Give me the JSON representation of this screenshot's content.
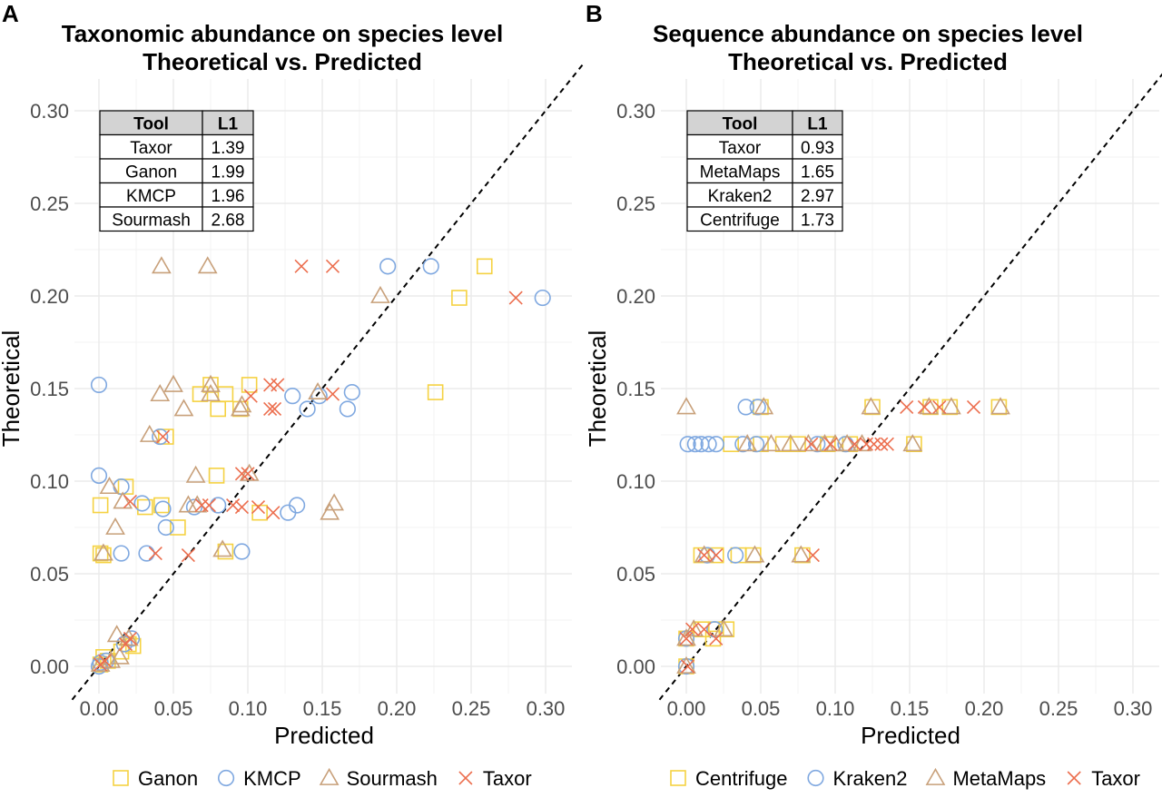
{
  "colors": {
    "Ganon": "#f5d242",
    "KMCP": "#7fa8e0",
    "Sourmash": "#c8a07a",
    "Taxor": "#ec6e4e",
    "Centrifuge": "#f5d242",
    "Kraken2": "#7fa8e0",
    "MetaMaps": "#c8a07a"
  },
  "chart_data": [
    {
      "panel": "A",
      "type": "scatter",
      "title": [
        "Taxonomic abundance on species level",
        "Theoretical vs. Predicted"
      ],
      "xlabel": "Predicted",
      "ylabel": "Theoretical",
      "xlim": [
        -0.015,
        0.315
      ],
      "ylim": [
        -0.013,
        0.315
      ],
      "xticks": [
        0,
        0.05,
        0.1,
        0.15,
        0.2,
        0.25,
        0.3
      ],
      "yticks": [
        0,
        0.05,
        0.1,
        0.15,
        0.2,
        0.25,
        0.3
      ],
      "tick_labels": [
        "0.00",
        "0.05",
        "0.10",
        "0.15",
        "0.20",
        "0.25",
        "0.30"
      ],
      "reference_line": "y = x (dashed)",
      "legend": [
        "Ganon",
        "KMCP",
        "Sourmash",
        "Taxor"
      ],
      "table": {
        "header": [
          "Tool",
          "L1"
        ],
        "rows": [
          [
            "Taxor",
            "1.39"
          ],
          [
            "Ganon",
            "1.99"
          ],
          [
            "KMCP",
            "1.96"
          ],
          [
            "Sourmash",
            "2.68"
          ]
        ]
      },
      "series": [
        {
          "name": "Ganon",
          "marker": "square",
          "points": [
            [
              0.259,
              0.216
            ],
            [
              0.242,
              0.199
            ],
            [
              0.226,
              0.148
            ],
            [
              0.101,
              0.152
            ],
            [
              0.075,
              0.152
            ],
            [
              0.068,
              0.147
            ],
            [
              0.085,
              0.147
            ],
            [
              0.08,
              0.139
            ],
            [
              0.095,
              0.139
            ],
            [
              0.045,
              0.124
            ],
            [
              0.079,
              0.103
            ],
            [
              0.001,
              0.087
            ],
            [
              0.018,
              0.097
            ],
            [
              0.031,
              0.086
            ],
            [
              0.042,
              0.087
            ],
            [
              0.053,
              0.075
            ],
            [
              0.108,
              0.083
            ],
            [
              0.001,
              0.061
            ],
            [
              0.003,
              0.06
            ],
            [
              0.085,
              0.062
            ],
            [
              0.02,
              0.012
            ],
            [
              0.023,
              0.011
            ],
            [
              0.015,
              0.008
            ],
            [
              0.003,
              0.005
            ],
            [
              0.006,
              0.003
            ],
            [
              0.001,
              0.001
            ]
          ]
        },
        {
          "name": "KMCP",
          "marker": "circle",
          "points": [
            [
              0.194,
              0.216
            ],
            [
              0.223,
              0.216
            ],
            [
              0.298,
              0.199
            ],
            [
              0.0,
              0.152
            ],
            [
              0.13,
              0.146
            ],
            [
              0.17,
              0.148
            ],
            [
              0.14,
              0.139
            ],
            [
              0.167,
              0.139
            ],
            [
              0.148,
              0.146
            ],
            [
              0.041,
              0.124
            ],
            [
              0.0,
              0.103
            ],
            [
              0.015,
              0.097
            ],
            [
              0.029,
              0.088
            ],
            [
              0.043,
              0.085
            ],
            [
              0.064,
              0.086
            ],
            [
              0.08,
              0.087
            ],
            [
              0.133,
              0.087
            ],
            [
              0.127,
              0.083
            ],
            [
              0.045,
              0.075
            ],
            [
              0.015,
              0.061
            ],
            [
              0.032,
              0.061
            ],
            [
              0.096,
              0.062
            ],
            [
              0.022,
              0.015
            ],
            [
              0.017,
              0.012
            ],
            [
              0.005,
              0.003
            ],
            [
              0.001,
              0.002
            ],
            [
              0.0,
              0.0
            ]
          ]
        },
        {
          "name": "Sourmash",
          "marker": "triangle",
          "points": [
            [
              0.042,
              0.216
            ],
            [
              0.073,
              0.216
            ],
            [
              0.189,
              0.2
            ],
            [
              0.041,
              0.147
            ],
            [
              0.05,
              0.152
            ],
            [
              0.057,
              0.139
            ],
            [
              0.075,
              0.152
            ],
            [
              0.075,
              0.147
            ],
            [
              0.095,
              0.139
            ],
            [
              0.096,
              0.141
            ],
            [
              0.147,
              0.148
            ],
            [
              0.034,
              0.125
            ],
            [
              0.065,
              0.103
            ],
            [
              0.101,
              0.104
            ],
            [
              0.007,
              0.097
            ],
            [
              0.011,
              0.075
            ],
            [
              0.016,
              0.089
            ],
            [
              0.06,
              0.087
            ],
            [
              0.066,
              0.087
            ],
            [
              0.158,
              0.088
            ],
            [
              0.155,
              0.083
            ],
            [
              0.003,
              0.061
            ],
            [
              0.083,
              0.063
            ],
            [
              0.012,
              0.017
            ],
            [
              0.02,
              0.015
            ],
            [
              0.008,
              0.003
            ],
            [
              0.014,
              0.005
            ],
            [
              0.001,
              0.001
            ]
          ]
        },
        {
          "name": "Taxor",
          "marker": "cross",
          "points": [
            [
              0.136,
              0.216
            ],
            [
              0.157,
              0.216
            ],
            [
              0.28,
              0.199
            ],
            [
              0.102,
              0.146
            ],
            [
              0.115,
              0.152
            ],
            [
              0.12,
              0.152
            ],
            [
              0.115,
              0.139
            ],
            [
              0.118,
              0.139
            ],
            [
              0.157,
              0.147
            ],
            [
              0.043,
              0.124
            ],
            [
              0.096,
              0.104
            ],
            [
              0.1,
              0.104
            ],
            [
              0.021,
              0.089
            ],
            [
              0.069,
              0.087
            ],
            [
              0.074,
              0.087
            ],
            [
              0.09,
              0.087
            ],
            [
              0.096,
              0.086
            ],
            [
              0.107,
              0.086
            ],
            [
              0.117,
              0.083
            ],
            [
              0.038,
              0.061
            ],
            [
              0.06,
              0.06
            ],
            [
              0.021,
              0.015
            ],
            [
              0.018,
              0.012
            ],
            [
              0.004,
              0.003
            ],
            [
              0.001,
              0.001
            ]
          ]
        }
      ]
    },
    {
      "panel": "B",
      "type": "scatter",
      "title": [
        "Sequence abundance on species level",
        "Theoretical vs. Predicted"
      ],
      "xlabel": "Predicted",
      "ylabel": "Theoretical",
      "xlim": [
        -0.015,
        0.315
      ],
      "ylim": [
        -0.013,
        0.315
      ],
      "xticks": [
        0,
        0.05,
        0.1,
        0.15,
        0.2,
        0.25,
        0.3
      ],
      "yticks": [
        0,
        0.05,
        0.1,
        0.15,
        0.2,
        0.25,
        0.3
      ],
      "tick_labels": [
        "0.00",
        "0.05",
        "0.10",
        "0.15",
        "0.20",
        "0.25",
        "0.30"
      ],
      "reference_line": "y = x (dashed)",
      "legend": [
        "Centrifuge",
        "Kraken2",
        "MetaMaps",
        "Taxor"
      ],
      "table": {
        "header": [
          "Tool",
          "L1"
        ],
        "rows": [
          [
            "Taxor",
            "0.93"
          ],
          [
            "MetaMaps",
            "1.65"
          ],
          [
            "Kraken2",
            "2.97"
          ],
          [
            "Centrifuge",
            "1.73"
          ]
        ]
      },
      "series": [
        {
          "name": "Centrifuge",
          "marker": "square",
          "points": [
            [
              0.125,
              0.14
            ],
            [
              0.164,
              0.14
            ],
            [
              0.177,
              0.14
            ],
            [
              0.21,
              0.14
            ],
            [
              0.05,
              0.14
            ],
            [
              0.03,
              0.12
            ],
            [
              0.05,
              0.12
            ],
            [
              0.065,
              0.12
            ],
            [
              0.075,
              0.12
            ],
            [
              0.095,
              0.12
            ],
            [
              0.11,
              0.12
            ],
            [
              0.153,
              0.12
            ],
            [
              0.01,
              0.06
            ],
            [
              0.02,
              0.06
            ],
            [
              0.035,
              0.06
            ],
            [
              0.045,
              0.06
            ],
            [
              0.078,
              0.06
            ],
            [
              0.0,
              0.015
            ],
            [
              0.01,
              0.02
            ],
            [
              0.018,
              0.015
            ],
            [
              0.02,
              0.02
            ],
            [
              0.027,
              0.02
            ],
            [
              0.0,
              0.0
            ]
          ]
        },
        {
          "name": "Kraken2",
          "marker": "circle",
          "points": [
            [
              0.04,
              0.14
            ],
            [
              0.048,
              0.14
            ],
            [
              0.001,
              0.12
            ],
            [
              0.006,
              0.12
            ],
            [
              0.01,
              0.12
            ],
            [
              0.015,
              0.12
            ],
            [
              0.02,
              0.12
            ],
            [
              0.038,
              0.12
            ],
            [
              0.047,
              0.12
            ],
            [
              0.088,
              0.12
            ],
            [
              0.107,
              0.12
            ],
            [
              0.014,
              0.06
            ],
            [
              0.033,
              0.06
            ],
            [
              0.019,
              0.02
            ],
            [
              0.0,
              0.015
            ],
            [
              0.0,
              0.0
            ]
          ]
        },
        {
          "name": "MetaMaps",
          "marker": "triangle",
          "points": [
            [
              0.0,
              0.14
            ],
            [
              0.052,
              0.14
            ],
            [
              0.124,
              0.14
            ],
            [
              0.163,
              0.14
            ],
            [
              0.178,
              0.14
            ],
            [
              0.211,
              0.14
            ],
            [
              0.057,
              0.12
            ],
            [
              0.07,
              0.12
            ],
            [
              0.082,
              0.12
            ],
            [
              0.093,
              0.12
            ],
            [
              0.1,
              0.12
            ],
            [
              0.108,
              0.12
            ],
            [
              0.118,
              0.12
            ],
            [
              0.152,
              0.12
            ],
            [
              0.041,
              0.12
            ],
            [
              0.012,
              0.06
            ],
            [
              0.046,
              0.06
            ],
            [
              0.077,
              0.06
            ],
            [
              0.005,
              0.02
            ],
            [
              0.025,
              0.02
            ],
            [
              0.0,
              0.015
            ],
            [
              0.0,
              0.0
            ]
          ]
        },
        {
          "name": "Taxor",
          "marker": "cross",
          "points": [
            [
              0.148,
              0.14
            ],
            [
              0.16,
              0.14
            ],
            [
              0.17,
              0.14
            ],
            [
              0.193,
              0.14
            ],
            [
              0.084,
              0.12
            ],
            [
              0.097,
              0.12
            ],
            [
              0.113,
              0.12
            ],
            [
              0.121,
              0.12
            ],
            [
              0.126,
              0.12
            ],
            [
              0.131,
              0.12
            ],
            [
              0.135,
              0.12
            ],
            [
              0.012,
              0.06
            ],
            [
              0.02,
              0.06
            ],
            [
              0.085,
              0.06
            ],
            [
              0.004,
              0.02
            ],
            [
              0.012,
              0.02
            ],
            [
              0.02,
              0.015
            ],
            [
              0.0,
              0.015
            ],
            [
              0.001,
              0.0
            ]
          ]
        }
      ]
    }
  ]
}
